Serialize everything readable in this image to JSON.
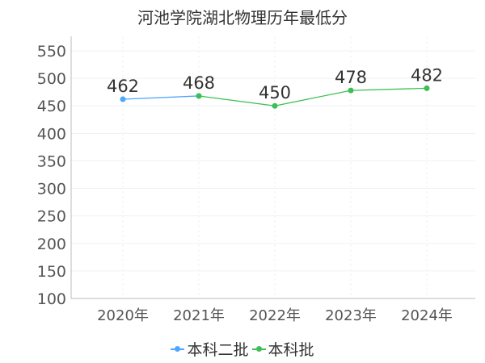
{
  "chart_data": {
    "type": "line",
    "title": "河池学院湖北物理历年最低分",
    "categories": [
      "2020年",
      "2021年",
      "2022年",
      "2023年",
      "2024年"
    ],
    "ylim": [
      100,
      550
    ],
    "yticks": [
      100,
      150,
      200,
      250,
      300,
      350,
      400,
      450,
      500,
      550
    ],
    "grid": true,
    "legend_position": "bottom",
    "series": [
      {
        "name": "本科二批",
        "color": "#4da6ff",
        "values": [
          462,
          468,
          null,
          null,
          null
        ]
      },
      {
        "name": "本科批",
        "color": "#3dbf55",
        "values": [
          null,
          468,
          450,
          478,
          482
        ]
      }
    ],
    "data_labels": [
      {
        "category": "2020年",
        "value": 462,
        "text": "462"
      },
      {
        "category": "2021年",
        "value": 468,
        "text": "468"
      },
      {
        "category": "2022年",
        "value": 450,
        "text": "450"
      },
      {
        "category": "2023年",
        "value": 478,
        "text": "478"
      },
      {
        "category": "2024年",
        "value": 482,
        "text": "482"
      }
    ]
  }
}
